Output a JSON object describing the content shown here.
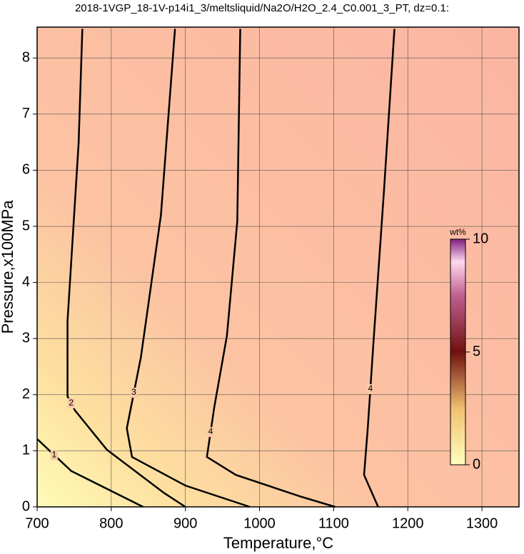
{
  "chart_data": {
    "type": "contour",
    "title": "2018-1VGP_18-1V-p14i1_3/meltsliquid/Na2O/H2O_2.4_C0.001_3_PT, dz=0.1:",
    "x_label": "Temperature,°C",
    "y_label": "Pressure,x100MPa",
    "xlim": [
      700,
      1350
    ],
    "ylim": [
      0,
      8.55
    ],
    "xticks": [
      700,
      800,
      900,
      1000,
      1100,
      1200,
      1300
    ],
    "yticks": [
      0,
      1,
      2,
      3,
      4,
      5,
      6,
      7,
      8
    ],
    "grid": true,
    "contours": [
      {
        "level": 1,
        "x": [
          700,
          746,
          843
        ],
        "y": [
          1.21,
          0.64,
          0
        ]
      },
      {
        "level": 2,
        "x": [
          761,
          756,
          741,
          741,
          751,
          794,
          871,
          900
        ],
        "y": [
          8.52,
          6.49,
          3.31,
          1.97,
          1.72,
          1.02,
          0.25,
          0
        ]
      },
      {
        "level": 3,
        "x": [
          886,
          867,
          840,
          821,
          828,
          900,
          987
        ],
        "y": [
          8.52,
          5.2,
          2.67,
          1.4,
          0.89,
          0.38,
          0
        ]
      },
      {
        "level": 4,
        "x": [
          974,
          970,
          956,
          939,
          929,
          968,
          1054,
          1102
        ],
        "y": [
          8.52,
          5.09,
          3.05,
          1.78,
          0.89,
          0.57,
          0.19,
          0
        ]
      },
      {
        "level": 4,
        "x": [
          1182,
          1168,
          1153,
          1146,
          1141,
          1160
        ],
        "y": [
          8.52,
          5.66,
          2.8,
          1.4,
          0.57,
          0
        ]
      }
    ],
    "colorbar": {
      "label": "wt%",
      "lim": [
        0,
        10
      ],
      "ticks": [
        0,
        5,
        10
      ]
    }
  }
}
